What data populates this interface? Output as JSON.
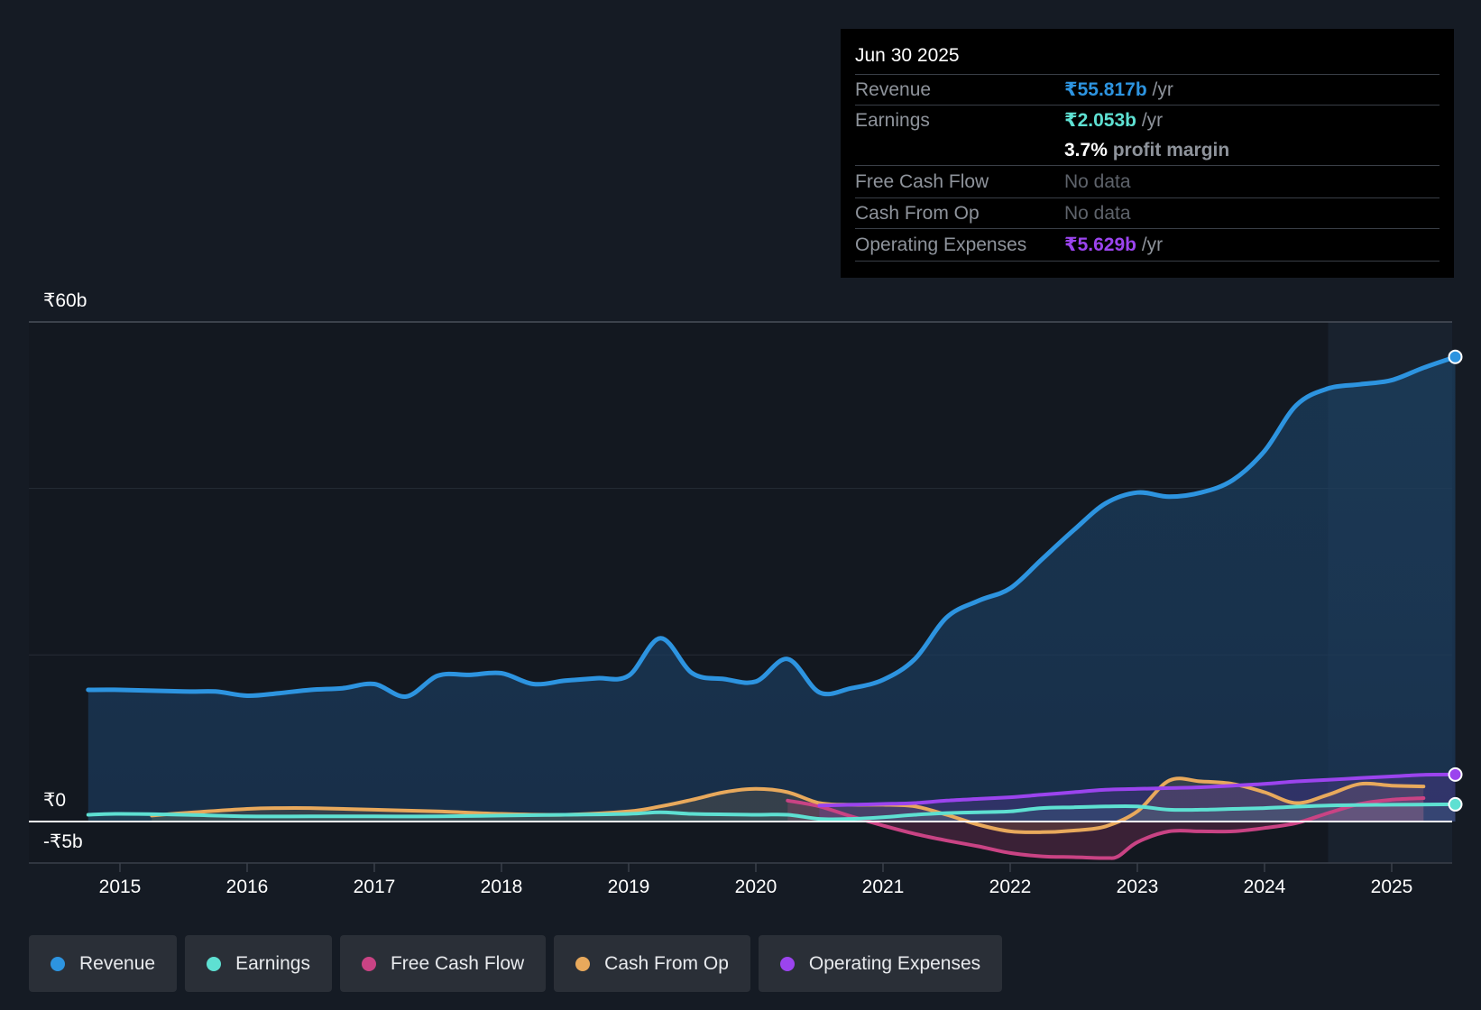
{
  "tooltip": {
    "date": "Jun 30 2025",
    "revenue_label": "Revenue",
    "revenue_value": "₹55.817b",
    "earnings_label": "Earnings",
    "earnings_value": "₹2.053b",
    "profit_margin_value": "3.7%",
    "profit_margin_label": "profit margin",
    "fcf_label": "Free Cash Flow",
    "fcf_value": "No data",
    "cfo_label": "Cash From Op",
    "cfo_value": "No data",
    "opex_label": "Operating Expenses",
    "opex_value": "₹5.629b",
    "per_year": "/yr"
  },
  "legend": [
    {
      "label": "Revenue",
      "color": "#2d94e0"
    },
    {
      "label": "Earnings",
      "color": "#5ee0d2"
    },
    {
      "label": "Free Cash Flow",
      "color": "#c94384"
    },
    {
      "label": "Cash From Op",
      "color": "#e8a95c"
    },
    {
      "label": "Operating Expenses",
      "color": "#9b44ee"
    }
  ],
  "chart_data": {
    "type": "line",
    "title": "",
    "xlabel": "",
    "ylabel": "",
    "x_ticks": [
      "2015",
      "2016",
      "2017",
      "2018",
      "2019",
      "2020",
      "2021",
      "2022",
      "2023",
      "2024",
      "2025"
    ],
    "y_labels": [
      "₹60b",
      "₹0",
      "-₹5b"
    ],
    "ylim": [
      -5,
      60
    ],
    "xlim": [
      2014.3,
      2025.5
    ],
    "forecast_start": 2024.5,
    "series": [
      {
        "name": "Revenue",
        "color": "#2d94e0",
        "x": [
          2014.75,
          2015.0,
          2015.5,
          2015.75,
          2016.0,
          2016.25,
          2016.5,
          2016.75,
          2017.0,
          2017.25,
          2017.5,
          2017.75,
          2018.0,
          2018.25,
          2018.5,
          2018.75,
          2019.0,
          2019.25,
          2019.5,
          2019.75,
          2020.0,
          2020.25,
          2020.5,
          2020.75,
          2021.0,
          2021.25,
          2021.5,
          2021.75,
          2022.0,
          2022.25,
          2022.5,
          2022.75,
          2023.0,
          2023.25,
          2023.5,
          2023.75,
          2024.0,
          2024.25,
          2024.5,
          2024.75,
          2025.0,
          2025.25,
          2025.5
        ],
        "values": [
          15.8,
          15.8,
          15.6,
          15.6,
          15.1,
          15.4,
          15.8,
          16.0,
          16.5,
          15.0,
          17.5,
          17.6,
          17.8,
          16.5,
          16.9,
          17.2,
          17.5,
          22.0,
          17.8,
          17.1,
          16.8,
          19.5,
          15.5,
          16.0,
          17.0,
          19.5,
          24.5,
          26.5,
          28.0,
          31.5,
          35.0,
          38.2,
          39.5,
          39.0,
          39.5,
          41.0,
          44.5,
          50.0,
          52.0,
          52.5,
          53.0,
          54.5,
          55.8
        ]
      },
      {
        "name": "Earnings",
        "color": "#5ee0d2",
        "x": [
          2014.75,
          2015.0,
          2015.5,
          2016.0,
          2016.5,
          2017.0,
          2017.5,
          2018.0,
          2018.5,
          2019.0,
          2019.25,
          2019.5,
          2020.0,
          2020.25,
          2020.5,
          2020.75,
          2021.0,
          2021.25,
          2021.5,
          2021.75,
          2022.0,
          2022.25,
          2022.5,
          2022.75,
          2023.0,
          2023.25,
          2023.5,
          2023.75,
          2024.0,
          2024.5,
          2025.0,
          2025.5
        ],
        "values": [
          0.8,
          0.9,
          0.8,
          0.6,
          0.6,
          0.6,
          0.6,
          0.7,
          0.8,
          0.9,
          1.1,
          0.9,
          0.8,
          0.8,
          0.3,
          0.3,
          0.5,
          0.8,
          1.0,
          1.1,
          1.2,
          1.6,
          1.7,
          1.8,
          1.8,
          1.4,
          1.4,
          1.5,
          1.6,
          1.9,
          2.0,
          2.05
        ]
      },
      {
        "name": "Free Cash Flow",
        "color": "#c94384",
        "x": [
          2020.25,
          2020.5,
          2020.75,
          2021.0,
          2021.25,
          2021.5,
          2021.75,
          2022.0,
          2022.25,
          2022.5,
          2022.75,
          2022.85,
          2023.0,
          2023.25,
          2023.5,
          2023.75,
          2024.0,
          2024.25,
          2024.5,
          2024.75,
          2025.0,
          2025.25
        ],
        "values": [
          2.5,
          1.8,
          0.6,
          -0.5,
          -1.5,
          -2.3,
          -3.0,
          -3.8,
          -4.2,
          -4.3,
          -4.4,
          -4.2,
          -2.5,
          -1.2,
          -1.2,
          -1.2,
          -0.8,
          -0.2,
          1.0,
          2.1,
          2.6,
          2.8
        ]
      },
      {
        "name": "Cash From Op",
        "color": "#e8a95c",
        "x": [
          2015.25,
          2015.5,
          2016.0,
          2016.25,
          2016.5,
          2017.0,
          2017.5,
          2018.0,
          2018.5,
          2019.0,
          2019.25,
          2019.5,
          2019.75,
          2020.0,
          2020.25,
          2020.5,
          2020.75,
          2021.0,
          2021.25,
          2021.5,
          2021.75,
          2022.0,
          2022.25,
          2022.5,
          2022.75,
          2023.0,
          2023.25,
          2023.5,
          2023.75,
          2024.0,
          2024.25,
          2024.5,
          2024.75,
          2025.0,
          2025.25
        ],
        "values": [
          0.7,
          1.0,
          1.5,
          1.6,
          1.6,
          1.4,
          1.2,
          0.9,
          0.8,
          1.2,
          1.8,
          2.6,
          3.5,
          3.9,
          3.5,
          2.2,
          2.0,
          2.0,
          1.8,
          0.8,
          -0.4,
          -1.2,
          -1.3,
          -1.1,
          -0.6,
          1.2,
          4.9,
          4.8,
          4.5,
          3.5,
          2.2,
          3.2,
          4.5,
          4.3,
          4.2
        ]
      },
      {
        "name": "Operating Expenses",
        "color": "#9b44ee",
        "x": [
          2020.5,
          2020.75,
          2021.0,
          2021.25,
          2021.5,
          2021.75,
          2022.0,
          2022.25,
          2022.5,
          2022.75,
          2023.0,
          2023.25,
          2023.5,
          2023.75,
          2024.0,
          2024.25,
          2024.5,
          2024.75,
          2025.0,
          2025.25,
          2025.5
        ],
        "values": [
          1.9,
          2.0,
          2.1,
          2.2,
          2.5,
          2.7,
          2.9,
          3.2,
          3.5,
          3.8,
          3.9,
          4.0,
          4.1,
          4.3,
          4.5,
          4.8,
          5.0,
          5.2,
          5.4,
          5.6,
          5.63
        ]
      }
    ]
  }
}
